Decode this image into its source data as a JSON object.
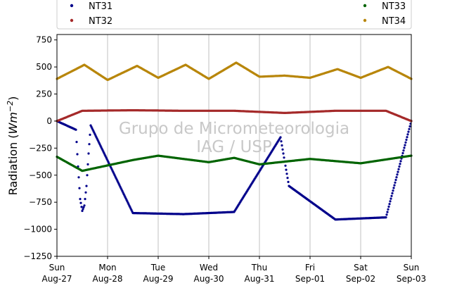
{
  "chart_data": {
    "type": "scatter",
    "title": "",
    "ylabel": "Radiation (Wm⁻²)",
    "ylim": [
      -1250,
      800
    ],
    "yticks": [
      750,
      500,
      250,
      0,
      -250,
      -500,
      -750,
      -1000,
      -1250
    ],
    "ytick_labels": [
      "750",
      "500",
      "250",
      "0",
      "−250",
      "−500",
      "−750",
      "−1000",
      "−1250"
    ],
    "xlim": [
      "2023-08-27",
      "2023-09-03"
    ],
    "x_unit": "day",
    "xticks": [
      {
        "weekday": "Sun",
        "date": "Aug-27"
      },
      {
        "weekday": "Mon",
        "date": "Aug-28"
      },
      {
        "weekday": "Tue",
        "date": "Aug-29"
      },
      {
        "weekday": "Wed",
        "date": "Aug-30"
      },
      {
        "weekday": "Thu",
        "date": "Aug-31"
      },
      {
        "weekday": "Fri",
        "date": "Sep-01"
      },
      {
        "weekday": "Sat",
        "date": "Sep-02"
      },
      {
        "weekday": "Sun",
        "date": "Sep-03"
      }
    ],
    "grid": "vertical",
    "legend_position": "top, outside plot, 2 columns",
    "watermark": [
      "Grupo de Micrometeorologia",
      "IAG / USP"
    ],
    "series": [
      {
        "name": "NT31",
        "color": "#00008b",
        "description_points": [
          {
            "x": "2023-08-27 00:00",
            "y": 0
          },
          {
            "x": "2023-08-27 09:00",
            "y": -80
          },
          {
            "x": "2023-08-27 10:00",
            "y": -420
          },
          {
            "x": "2023-08-27 11:00",
            "y": -720
          },
          {
            "x": "2023-08-27 12:00",
            "y": -830
          },
          {
            "x": "2023-08-27 13:00",
            "y": -780
          },
          {
            "x": "2023-08-27 14:00",
            "y": -600
          },
          {
            "x": "2023-08-27 15:00",
            "y": -300
          },
          {
            "x": "2023-08-27 16:00",
            "y": -40
          },
          {
            "x": "2023-08-28 12:00",
            "y": -850
          },
          {
            "x": "2023-08-29 12:00",
            "y": -860
          },
          {
            "x": "2023-08-30 12:00",
            "y": -840
          },
          {
            "x": "2023-08-31 10:00",
            "y": -150
          },
          {
            "x": "2023-08-31 14:00",
            "y": -600
          },
          {
            "x": "2023-09-01 12:00",
            "y": -910
          },
          {
            "x": "2023-09-02 12:00",
            "y": -890
          },
          {
            "x": "2023-09-03 00:00",
            "y": 0
          }
        ]
      },
      {
        "name": "NT32",
        "color": "#a52a2a",
        "description_points": [
          {
            "x": "2023-08-27 00:00",
            "y": 0
          },
          {
            "x": "2023-08-27 12:00",
            "y": 95
          },
          {
            "x": "2023-08-28 12:00",
            "y": 100
          },
          {
            "x": "2023-08-29 12:00",
            "y": 95
          },
          {
            "x": "2023-08-30 12:00",
            "y": 95
          },
          {
            "x": "2023-08-31 12:00",
            "y": 75
          },
          {
            "x": "2023-09-01 12:00",
            "y": 95
          },
          {
            "x": "2023-09-02 12:00",
            "y": 95
          },
          {
            "x": "2023-09-03 00:00",
            "y": 0
          }
        ]
      },
      {
        "name": "NT33",
        "color": "#006400",
        "description_points": [
          {
            "x": "2023-08-27 00:00",
            "y": -330
          },
          {
            "x": "2023-08-27 12:00",
            "y": -460
          },
          {
            "x": "2023-08-28 12:00",
            "y": -360
          },
          {
            "x": "2023-08-29 00:00",
            "y": -320
          },
          {
            "x": "2023-08-30 00:00",
            "y": -380
          },
          {
            "x": "2023-08-30 12:00",
            "y": -340
          },
          {
            "x": "2023-08-31 00:00",
            "y": -400
          },
          {
            "x": "2023-09-01 00:00",
            "y": -350
          },
          {
            "x": "2023-09-02 00:00",
            "y": -390
          },
          {
            "x": "2023-09-03 00:00",
            "y": -320
          }
        ]
      },
      {
        "name": "NT34",
        "color": "#b8860b",
        "description_points": [
          {
            "x": "2023-08-27 00:00",
            "y": 390
          },
          {
            "x": "2023-08-27 13:00",
            "y": 520
          },
          {
            "x": "2023-08-28 00:00",
            "y": 380
          },
          {
            "x": "2023-08-28 14:00",
            "y": 510
          },
          {
            "x": "2023-08-29 00:00",
            "y": 400
          },
          {
            "x": "2023-08-29 13:00",
            "y": 520
          },
          {
            "x": "2023-08-30 00:00",
            "y": 390
          },
          {
            "x": "2023-08-30 13:00",
            "y": 540
          },
          {
            "x": "2023-08-31 00:00",
            "y": 410
          },
          {
            "x": "2023-08-31 12:00",
            "y": 420
          },
          {
            "x": "2023-09-01 00:00",
            "y": 400
          },
          {
            "x": "2023-09-01 13:00",
            "y": 480
          },
          {
            "x": "2023-09-02 00:00",
            "y": 400
          },
          {
            "x": "2023-09-02 13:00",
            "y": 500
          },
          {
            "x": "2023-09-03 00:00",
            "y": 390
          }
        ]
      }
    ]
  }
}
